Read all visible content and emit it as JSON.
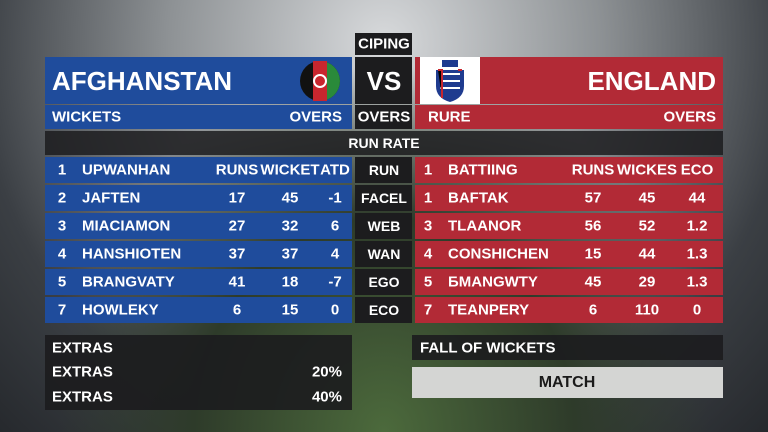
{
  "header": {
    "label": "CIPING",
    "vs": "VS",
    "home": {
      "name": "AFGHANSTAN",
      "left": "WICKETS",
      "right": "OVERS"
    },
    "center": "OVERS",
    "away": {
      "name": "ENGLAND",
      "left": "RURE",
      "right": "OVERS"
    },
    "subtitle": "RUN RATE"
  },
  "home_table": {
    "columns": [
      "1",
      "UPWANHAN",
      "RUNS",
      "WICKET",
      "ATD"
    ],
    "rows": [
      [
        "2",
        "JAFTEN",
        "17",
        "45",
        "-1"
      ],
      [
        "3",
        "MIACIAMON",
        "27",
        "32",
        "6"
      ],
      [
        "4",
        "HANSHIOTEN",
        "37",
        "37",
        "4"
      ],
      [
        "5",
        "BRANGVATY",
        "41",
        "18",
        "-7"
      ],
      [
        "7",
        "HOWLEKY",
        "6",
        "15",
        "0"
      ]
    ]
  },
  "center_column": [
    "RUN",
    "FACEL",
    "WEB",
    "WAN",
    "EGO",
    "ECO"
  ],
  "away_table": {
    "columns": [
      "1",
      "BATTIING",
      "RUNS",
      "WICKES",
      "ECO"
    ],
    "rows": [
      [
        "1",
        "BAFTAK",
        "57",
        "45",
        "44"
      ],
      [
        "3",
        "TLAANOR",
        "56",
        "52",
        "1.2"
      ],
      [
        "4",
        "CONSHICHEN",
        "15",
        "44",
        "1.3"
      ],
      [
        "5",
        "ƂMANGWTY",
        "45",
        "29",
        "1.3"
      ],
      [
        "7",
        "TEANPERY",
        "6",
        "110",
        "0"
      ]
    ]
  },
  "extras": {
    "title": "EXTRAS",
    "rows": [
      [
        "EXTRAS",
        "20%"
      ],
      [
        "EXTRAS",
        "40%"
      ]
    ]
  },
  "fall_of_wickets": "FALL OF WICKETS",
  "match_button": "MATCH"
}
